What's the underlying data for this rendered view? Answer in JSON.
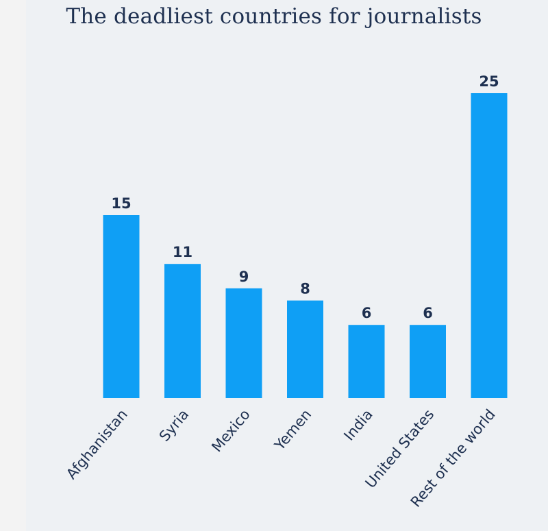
{
  "chart_data": {
    "type": "bar",
    "title": "The deadliest countries for journalists",
    "categories": [
      "Afghanistan",
      "Syria",
      "Mexico",
      "Yemen",
      "India",
      "United States",
      "Rest of the world"
    ],
    "values": [
      15,
      11,
      9,
      8,
      6,
      6,
      25
    ],
    "xlabel": "",
    "ylabel": "",
    "ylim": [
      0,
      25
    ],
    "grid": false,
    "colors": {
      "bar": "#0f9ff5",
      "text": "#1e3050",
      "background": "#eef1f4"
    }
  }
}
